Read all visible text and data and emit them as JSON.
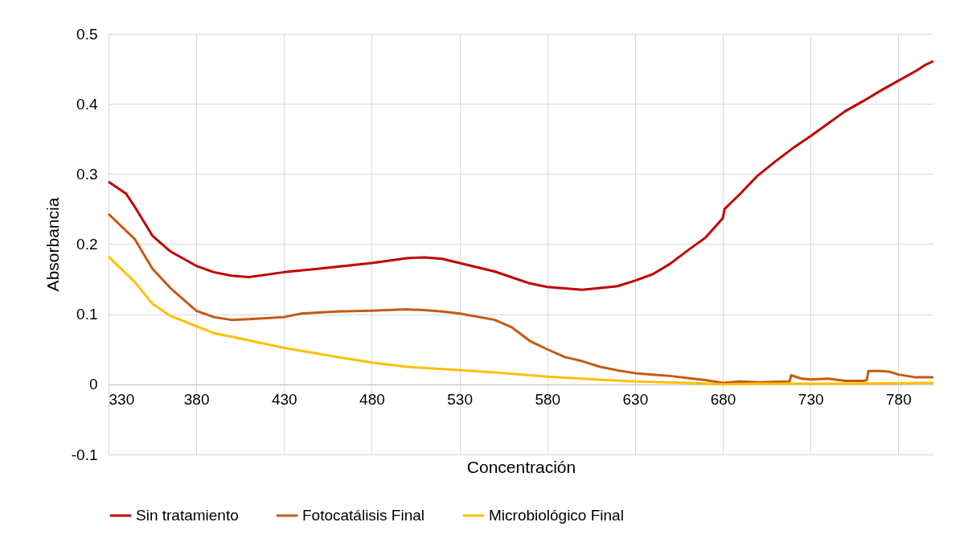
{
  "chart_data": {
    "type": "line",
    "xlabel": "Concentración",
    "ylabel": "Absorbancia",
    "xlim": [
      330,
      800
    ],
    "xticks": [
      330,
      380,
      430,
      480,
      530,
      580,
      630,
      680,
      730,
      780
    ],
    "ylim": [
      -0.1,
      0.5
    ],
    "yticks": [
      -0.1,
      0,
      0.1,
      0.2,
      0.3,
      0.4,
      0.5
    ],
    "grid": true,
    "legend": "bottom",
    "line_style": "solid",
    "series": [
      {
        "name": "Sin tratamiento",
        "color": "#c00000",
        "x": [
          330,
          340,
          345,
          355,
          365,
          380,
          390,
          400,
          410,
          430,
          450,
          480,
          500,
          510,
          520,
          530,
          550,
          570,
          580,
          600,
          620,
          630,
          640,
          650,
          660,
          670,
          680,
          681,
          690,
          700,
          710,
          720,
          730,
          740,
          750,
          760,
          770,
          780,
          790,
          795,
          800
        ],
        "values": [
          0.289,
          0.272,
          0.253,
          0.212,
          0.19,
          0.169,
          0.16,
          0.155,
          0.153,
          0.16,
          0.165,
          0.173,
          0.18,
          0.181,
          0.179,
          0.173,
          0.161,
          0.144,
          0.139,
          0.135,
          0.14,
          0.148,
          0.157,
          0.172,
          0.191,
          0.209,
          0.237,
          0.25,
          0.272,
          0.298,
          0.318,
          0.337,
          0.354,
          0.372,
          0.39,
          0.404,
          0.419,
          0.433,
          0.447,
          0.455,
          0.461
        ]
      },
      {
        "name": "Fotocatálisis Final",
        "color": "#c55a11",
        "x": [
          330,
          345,
          355,
          365,
          380,
          390,
          400,
          410,
          430,
          440,
          460,
          480,
          500,
          510,
          520,
          530,
          550,
          560,
          570,
          580,
          590,
          600,
          610,
          620,
          630,
          640,
          650,
          660,
          670,
          680,
          690,
          700,
          718,
          719,
          725,
          730,
          740,
          750,
          760,
          762,
          763,
          770,
          775,
          780,
          790,
          800
        ],
        "values": [
          0.243,
          0.207,
          0.165,
          0.138,
          0.105,
          0.096,
          0.092,
          0.093,
          0.096,
          0.101,
          0.104,
          0.105,
          0.107,
          0.106,
          0.104,
          0.101,
          0.092,
          0.081,
          0.062,
          0.05,
          0.039,
          0.033,
          0.025,
          0.02,
          0.016,
          0.014,
          0.012,
          0.009,
          0.006,
          0.002,
          0.004,
          0.003,
          0.004,
          0.013,
          0.008,
          0.007,
          0.008,
          0.005,
          0.005,
          0.006,
          0.019,
          0.019,
          0.018,
          0.014,
          0.01,
          0.01
        ]
      },
      {
        "name": "Microbiológico Final",
        "color": "#ffc000",
        "x": [
          330,
          345,
          355,
          365,
          380,
          390,
          400,
          430,
          460,
          480,
          500,
          520,
          550,
          580,
          600,
          630,
          660,
          680,
          700,
          750,
          800
        ],
        "values": [
          0.182,
          0.146,
          0.115,
          0.098,
          0.083,
          0.073,
          0.068,
          0.052,
          0.039,
          0.031,
          0.025,
          0.022,
          0.017,
          0.011,
          0.008,
          0.004,
          0.002,
          0,
          0.001,
          0.001,
          0.002
        ]
      }
    ]
  }
}
